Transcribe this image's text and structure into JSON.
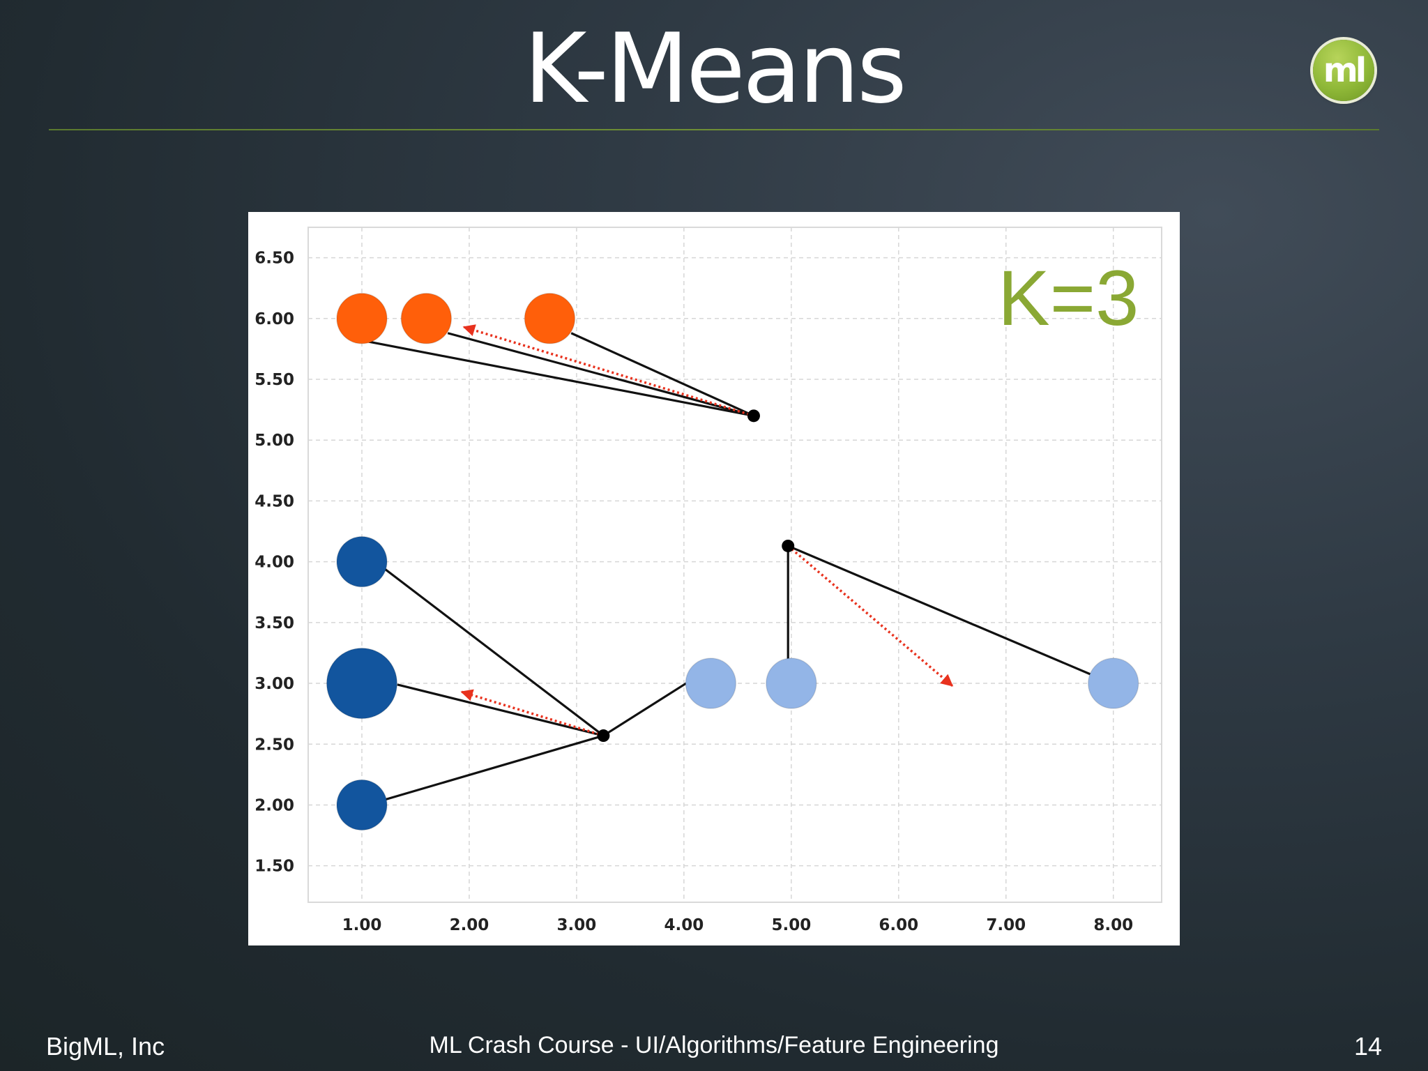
{
  "slide": {
    "title": "K-Means",
    "logo_text": "ml",
    "footer_left": "BigML, Inc",
    "footer_center": "ML Crash Course - UI/Algorithms/Feature Engineering",
    "page_number": "14"
  },
  "chart_data": {
    "type": "scatter",
    "annotation": "K=3",
    "annotation_color": "#8aa834",
    "xlim": [
      0.5,
      8.45
    ],
    "ylim": [
      1.2,
      6.75
    ],
    "x_ticks": [
      1,
      2,
      3,
      4,
      5,
      6,
      7,
      8
    ],
    "x_tick_labels": [
      "1.00",
      "2.00",
      "3.00",
      "4.00",
      "5.00",
      "6.00",
      "7.00",
      "8.00"
    ],
    "y_ticks": [
      1.5,
      2,
      2.5,
      3,
      3.5,
      4,
      4.5,
      5,
      5.5,
      6,
      6.5
    ],
    "y_tick_labels": [
      "1.50",
      "2.00",
      "2.50",
      "3.00",
      "3.50",
      "4.00",
      "4.50",
      "5.00",
      "5.50",
      "6.00",
      "6.50"
    ],
    "grid": true,
    "series": [
      {
        "color": "#ff5f0a",
        "points": [
          {
            "x": 1.0,
            "y": 6.0,
            "size": 1.0
          },
          {
            "x": 1.6,
            "y": 6.0,
            "size": 1.0
          },
          {
            "x": 2.75,
            "y": 6.0,
            "size": 1.0
          }
        ]
      },
      {
        "color": "#12559e",
        "points": [
          {
            "x": 1.0,
            "y": 4.0,
            "size": 1.0
          },
          {
            "x": 1.0,
            "y": 3.0,
            "size": 1.4
          },
          {
            "x": 1.0,
            "y": 2.0,
            "size": 1.0
          }
        ]
      },
      {
        "color": "#93b5e7",
        "points": [
          {
            "x": 4.25,
            "y": 3.0,
            "size": 1.0
          },
          {
            "x": 5.0,
            "y": 3.0,
            "size": 1.0
          },
          {
            "x": 8.0,
            "y": 3.0,
            "size": 1.0
          }
        ]
      }
    ],
    "centroids": [
      {
        "x": 4.65,
        "y": 5.2
      },
      {
        "x": 3.25,
        "y": 2.57
      },
      {
        "x": 4.97,
        "y": 4.13
      }
    ],
    "assignment_lines": [
      {
        "from": [
          4.65,
          5.2
        ],
        "to": [
          1.0,
          5.82
        ]
      },
      {
        "from": [
          4.65,
          5.2
        ],
        "to": [
          1.8,
          5.88
        ]
      },
      {
        "from": [
          4.65,
          5.2
        ],
        "to": [
          2.95,
          5.88
        ]
      },
      {
        "from": [
          3.25,
          2.57
        ],
        "to": [
          1.2,
          3.95
        ]
      },
      {
        "from": [
          3.25,
          2.57
        ],
        "to": [
          1.33,
          2.99
        ]
      },
      {
        "from": [
          3.25,
          2.57
        ],
        "to": [
          1.2,
          2.04
        ]
      },
      {
        "from": [
          3.25,
          2.57
        ],
        "to": [
          4.02,
          3.0
        ]
      },
      {
        "from": [
          4.97,
          4.13
        ],
        "to": [
          4.97,
          3.2
        ]
      },
      {
        "from": [
          4.97,
          4.13
        ],
        "to": [
          7.8,
          3.07
        ]
      }
    ],
    "move_arrows": [
      {
        "from": [
          4.65,
          5.2
        ],
        "to": [
          1.95,
          5.93
        ]
      },
      {
        "from": [
          3.25,
          2.57
        ],
        "to": [
          1.93,
          2.93
        ]
      },
      {
        "from": [
          4.97,
          4.13
        ],
        "to": [
          6.5,
          2.98
        ]
      }
    ],
    "arrow_color": "#e8321e",
    "grid_color": "#d6d6d6"
  }
}
